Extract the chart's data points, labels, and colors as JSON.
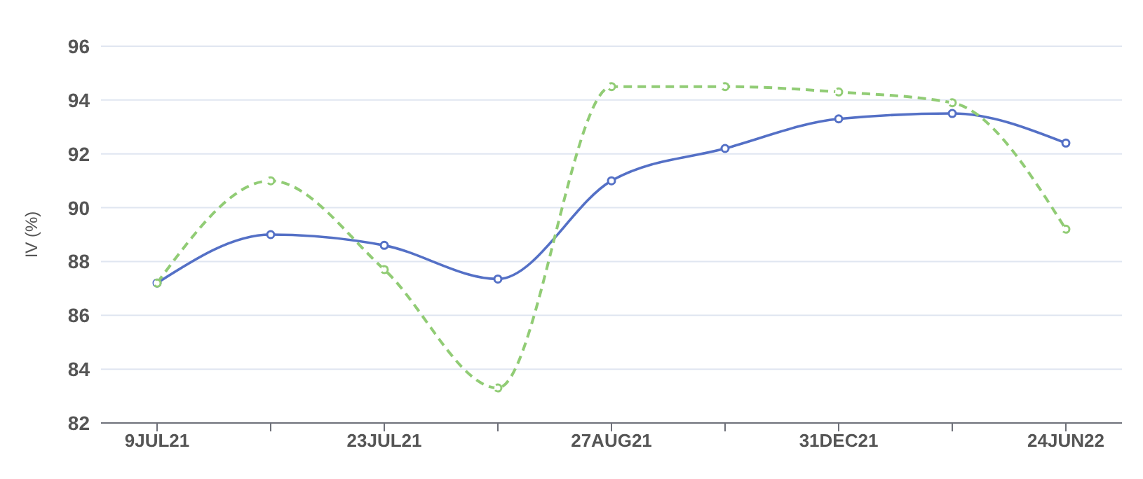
{
  "chart_data": {
    "type": "line",
    "ylabel": "IV (%)",
    "categories": [
      "9JUL21",
      null,
      "23JUL21",
      null,
      "27AUG21",
      null,
      "31DEC21",
      null,
      "24JUN22"
    ],
    "series": [
      {
        "color": "#5470c6",
        "line_style": "solid",
        "values": [
          87.2,
          89.0,
          88.6,
          87.35,
          91.0,
          92.2,
          93.3,
          93.5,
          92.4
        ]
      },
      {
        "color": "#91cc75",
        "line_style": "dashed",
        "values": [
          87.2,
          91.0,
          87.7,
          83.3,
          94.5,
          94.5,
          94.3,
          93.9,
          89.2
        ]
      }
    ],
    "ylim": [
      82,
      96
    ],
    "yticks": [
      82,
      84,
      86,
      88,
      90,
      92,
      94,
      96
    ],
    "grid": "y",
    "marker": "circle"
  }
}
